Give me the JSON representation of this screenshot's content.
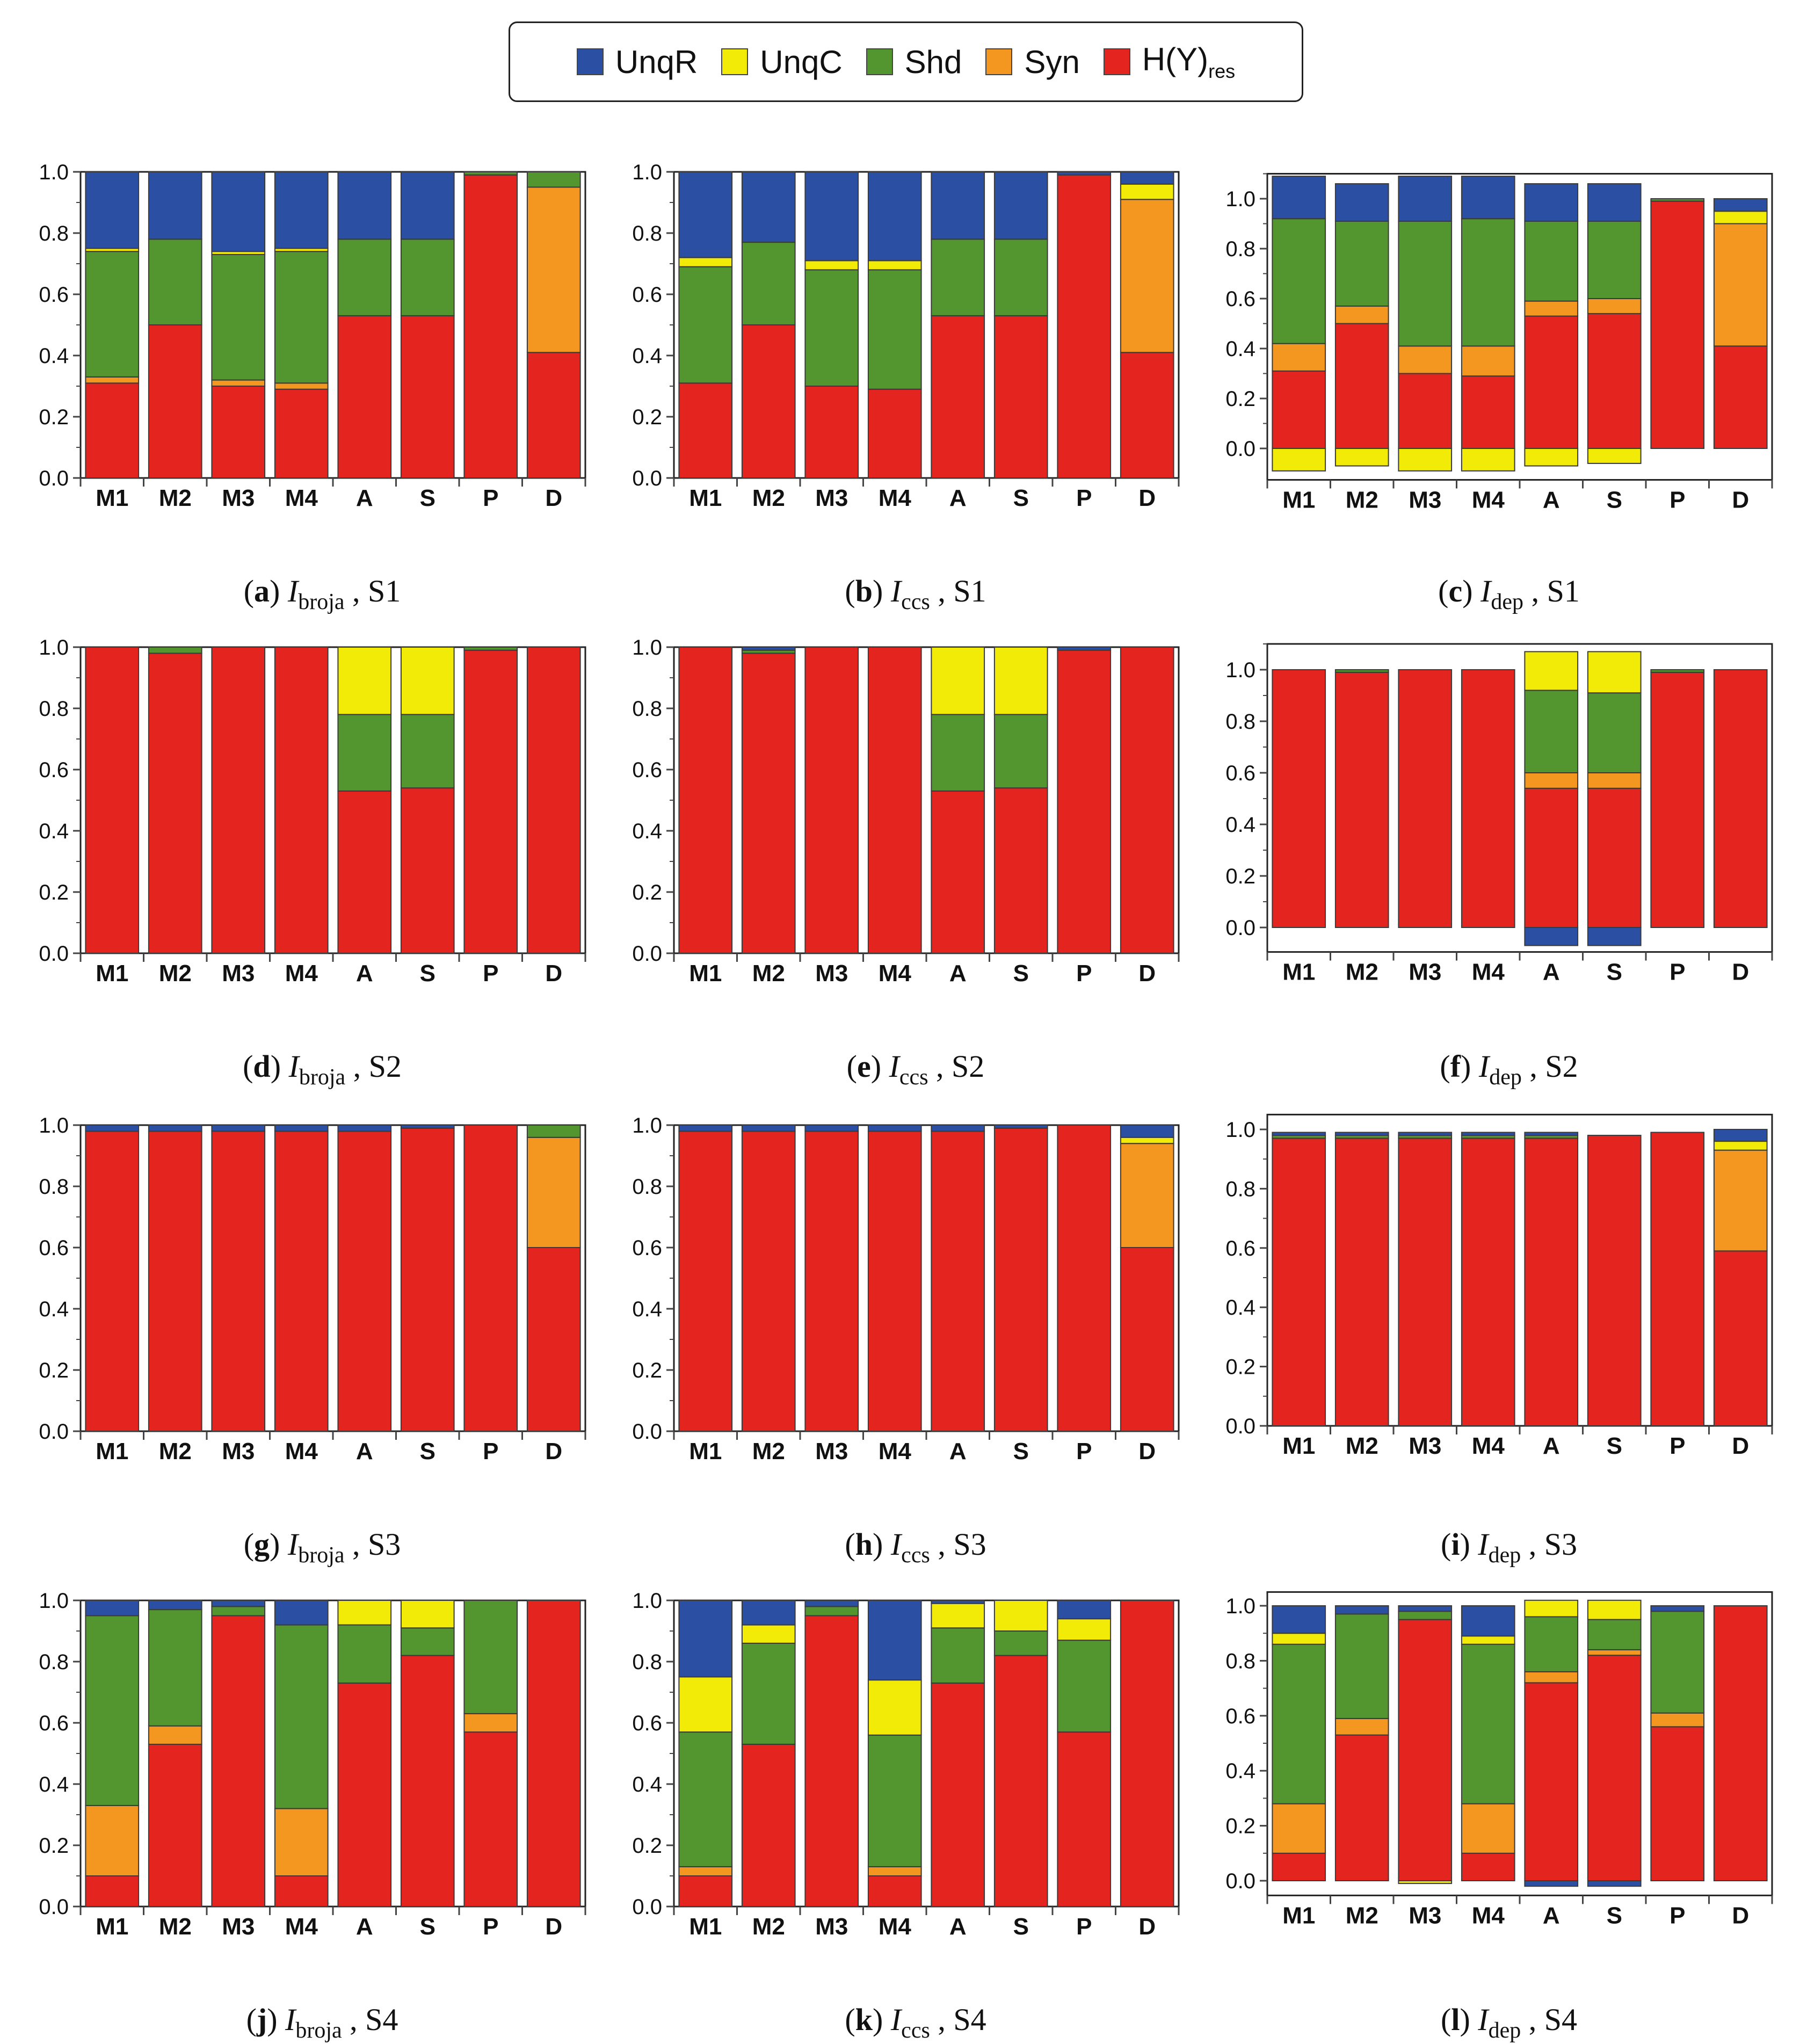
{
  "colors": {
    "UnqR": "#2a4fa3",
    "UnqC": "#f2ea07",
    "Shd": "#53962f",
    "Syn": "#f39720",
    "Hres": "#e3241f",
    "frame": "#222222",
    "tick": "#444444"
  },
  "legend": {
    "items": [
      {
        "key": "UnqR",
        "label": "UnqR",
        "sub": ""
      },
      {
        "key": "UnqC",
        "label": "UnqC",
        "sub": ""
      },
      {
        "key": "Shd",
        "label": "Shd",
        "sub": ""
      },
      {
        "key": "Syn",
        "label": "Syn",
        "sub": ""
      },
      {
        "key": "Hres",
        "label": "H(Y)",
        "sub": "res"
      }
    ]
  },
  "chart_data": [
    {
      "id": "a",
      "type": "bar",
      "stacked": true,
      "caption": {
        "letter": "a",
        "measure": "I",
        "sub": "broja",
        "scenario": "S1"
      },
      "categories": [
        "M1",
        "M2",
        "M3",
        "M4",
        "A",
        "S",
        "P",
        "D"
      ],
      "ylim": [
        0,
        1.0
      ],
      "yticks": [
        "0.0",
        "0.2",
        "0.4",
        "0.6",
        "0.8",
        "1.0"
      ],
      "series": [
        {
          "name": "Hres",
          "values": [
            0.31,
            0.5,
            0.3,
            0.29,
            0.53,
            0.53,
            0.99,
            0.41
          ]
        },
        {
          "name": "Syn",
          "values": [
            0.02,
            0,
            0.02,
            0.02,
            0,
            0,
            0,
            0.54
          ]
        },
        {
          "name": "Shd",
          "values": [
            0.41,
            0.28,
            0.41,
            0.43,
            0.25,
            0.25,
            0.01,
            0.05
          ]
        },
        {
          "name": "UnqC",
          "values": [
            0.01,
            0,
            0.01,
            0.01,
            0,
            0,
            0,
            0
          ]
        },
        {
          "name": "UnqR",
          "values": [
            0.25,
            0.22,
            0.26,
            0.25,
            0.22,
            0.22,
            0,
            0
          ]
        }
      ]
    },
    {
      "id": "b",
      "type": "bar",
      "stacked": true,
      "caption": {
        "letter": "b",
        "measure": "I",
        "sub": "ccs",
        "scenario": "S1"
      },
      "categories": [
        "M1",
        "M2",
        "M3",
        "M4",
        "A",
        "S",
        "P",
        "D"
      ],
      "ylim": [
        0,
        1.0
      ],
      "yticks": [
        "0.0",
        "0.2",
        "0.4",
        "0.6",
        "0.8",
        "1.0"
      ],
      "series": [
        {
          "name": "Hres",
          "values": [
            0.31,
            0.5,
            0.3,
            0.29,
            0.53,
            0.53,
            0.99,
            0.41
          ]
        },
        {
          "name": "Shd",
          "values": [
            0.38,
            0.27,
            0.38,
            0.39,
            0.25,
            0.25,
            0,
            0
          ]
        },
        {
          "name": "Syn",
          "values": [
            0,
            0,
            0,
            0,
            0,
            0,
            0,
            0.5
          ]
        },
        {
          "name": "UnqC",
          "values": [
            0.03,
            0,
            0.03,
            0.03,
            0,
            0,
            0,
            0.05
          ]
        },
        {
          "name": "UnqR",
          "values": [
            0.28,
            0.23,
            0.29,
            0.29,
            0.22,
            0.22,
            0.01,
            0.04
          ]
        }
      ]
    },
    {
      "id": "c",
      "type": "bar",
      "stacked": true,
      "caption": {
        "letter": "c",
        "measure": "I",
        "sub": "dep",
        "scenario": "S1"
      },
      "categories": [
        "M1",
        "M2",
        "M3",
        "M4",
        "A",
        "S",
        "P",
        "D"
      ],
      "ylim": [
        -0.1,
        1.1
      ],
      "yticks": [
        "0.0",
        "0.2",
        "0.4",
        "0.6",
        "0.8",
        "1.0"
      ],
      "series": [
        {
          "name": "UnqC",
          "values": [
            -0.09,
            -0.07,
            -0.09,
            -0.09,
            -0.07,
            -0.06,
            0,
            0
          ]
        },
        {
          "name": "Hres",
          "values": [
            0.31,
            0.5,
            0.3,
            0.29,
            0.53,
            0.54,
            0.99,
            0.41
          ]
        },
        {
          "name": "Syn",
          "values": [
            0.11,
            0.07,
            0.11,
            0.12,
            0.06,
            0.06,
            0,
            0.49
          ]
        },
        {
          "name": "Shd",
          "values": [
            0.5,
            0.34,
            0.5,
            0.51,
            0.32,
            0.31,
            0.01,
            0
          ]
        },
        {
          "name": "UnqC",
          "values": [
            0,
            0,
            0,
            0,
            0,
            0,
            0,
            0.05
          ]
        },
        {
          "name": "UnqR",
          "values": [
            0.17,
            0.15,
            0.18,
            0.17,
            0.15,
            0.15,
            0,
            0.05
          ]
        }
      ]
    },
    {
      "id": "d",
      "type": "bar",
      "stacked": true,
      "caption": {
        "letter": "d",
        "measure": "I",
        "sub": "broja",
        "scenario": "S2"
      },
      "categories": [
        "M1",
        "M2",
        "M3",
        "M4",
        "A",
        "S",
        "P",
        "D"
      ],
      "ylim": [
        0,
        1.0
      ],
      "yticks": [
        "0.0",
        "0.2",
        "0.4",
        "0.6",
        "0.8",
        "1.0"
      ],
      "series": [
        {
          "name": "Hres",
          "values": [
            1.0,
            0.98,
            1.0,
            1.0,
            0.53,
            0.54,
            0.99,
            1.0
          ]
        },
        {
          "name": "Shd",
          "values": [
            0,
            0.02,
            0,
            0,
            0.25,
            0.24,
            0.01,
            0
          ]
        },
        {
          "name": "UnqC",
          "values": [
            0,
            0,
            0,
            0,
            0.22,
            0.22,
            0,
            0
          ]
        }
      ]
    },
    {
      "id": "e",
      "type": "bar",
      "stacked": true,
      "caption": {
        "letter": "e",
        "measure": "I",
        "sub": "ccs",
        "scenario": "S2"
      },
      "categories": [
        "M1",
        "M2",
        "M3",
        "M4",
        "A",
        "S",
        "P",
        "D"
      ],
      "ylim": [
        0,
        1.0
      ],
      "yticks": [
        "0.0",
        "0.2",
        "0.4",
        "0.6",
        "0.8",
        "1.0"
      ],
      "series": [
        {
          "name": "Hres",
          "values": [
            1.0,
            0.98,
            1.0,
            1.0,
            0.53,
            0.54,
            0.99,
            1.0
          ]
        },
        {
          "name": "Shd",
          "values": [
            0,
            0.01,
            0,
            0,
            0.25,
            0.24,
            0,
            0
          ]
        },
        {
          "name": "UnqC",
          "values": [
            0,
            0,
            0,
            0,
            0.22,
            0.22,
            0,
            0
          ]
        },
        {
          "name": "UnqR",
          "values": [
            0,
            0.01,
            0,
            0,
            0,
            0,
            0.01,
            0
          ]
        }
      ]
    },
    {
      "id": "f",
      "type": "bar",
      "stacked": true,
      "caption": {
        "letter": "f",
        "measure": "I",
        "sub": "dep",
        "scenario": "S2"
      },
      "categories": [
        "M1",
        "M2",
        "M3",
        "M4",
        "A",
        "S",
        "P",
        "D"
      ],
      "ylim": [
        -0.07,
        1.1
      ],
      "yticks": [
        "0.0",
        "0.2",
        "0.4",
        "0.6",
        "0.8",
        "1.0"
      ],
      "series": [
        {
          "name": "UnqR",
          "values": [
            0,
            0,
            0,
            0,
            -0.07,
            -0.07,
            0,
            0
          ]
        },
        {
          "name": "Hres",
          "values": [
            1.0,
            0.99,
            1.0,
            1.0,
            0.54,
            0.54,
            0.99,
            1.0
          ]
        },
        {
          "name": "Syn",
          "values": [
            0,
            0,
            0,
            0,
            0.06,
            0.06,
            0,
            0
          ]
        },
        {
          "name": "Shd",
          "values": [
            0,
            0.01,
            0,
            0,
            0.32,
            0.31,
            0.01,
            0
          ]
        },
        {
          "name": "UnqC",
          "values": [
            0,
            0,
            0,
            0,
            0.15,
            0.16,
            0,
            0
          ]
        }
      ]
    },
    {
      "id": "g",
      "type": "bar",
      "stacked": true,
      "caption": {
        "letter": "g",
        "measure": "I",
        "sub": "broja",
        "scenario": "S3"
      },
      "categories": [
        "M1",
        "M2",
        "M3",
        "M4",
        "A",
        "S",
        "P",
        "D"
      ],
      "ylim": [
        0,
        1.0
      ],
      "yticks": [
        "0.0",
        "0.2",
        "0.4",
        "0.6",
        "0.8",
        "1.0"
      ],
      "series": [
        {
          "name": "Hres",
          "values": [
            0.98,
            0.98,
            0.98,
            0.98,
            0.98,
            0.99,
            1.0,
            0.6
          ]
        },
        {
          "name": "Syn",
          "values": [
            0,
            0,
            0,
            0,
            0,
            0,
            0,
            0.36
          ]
        },
        {
          "name": "Shd",
          "values": [
            0,
            0,
            0,
            0,
            0,
            0,
            0,
            0.04
          ]
        },
        {
          "name": "UnqR",
          "values": [
            0.02,
            0.02,
            0.02,
            0.02,
            0.02,
            0.01,
            0,
            0
          ]
        }
      ]
    },
    {
      "id": "h",
      "type": "bar",
      "stacked": true,
      "caption": {
        "letter": "h",
        "measure": "I",
        "sub": "ccs",
        "scenario": "S3"
      },
      "categories": [
        "M1",
        "M2",
        "M3",
        "M4",
        "A",
        "S",
        "P",
        "D"
      ],
      "ylim": [
        0,
        1.0
      ],
      "yticks": [
        "0.0",
        "0.2",
        "0.4",
        "0.6",
        "0.8",
        "1.0"
      ],
      "series": [
        {
          "name": "Hres",
          "values": [
            0.98,
            0.98,
            0.98,
            0.98,
            0.98,
            0.99,
            1.0,
            0.6
          ]
        },
        {
          "name": "Syn",
          "values": [
            0,
            0,
            0,
            0,
            0,
            0,
            0,
            0.34
          ]
        },
        {
          "name": "UnqC",
          "values": [
            0,
            0,
            0,
            0,
            0,
            0,
            0,
            0.02
          ]
        },
        {
          "name": "UnqR",
          "values": [
            0.02,
            0.02,
            0.02,
            0.02,
            0.02,
            0.01,
            0,
            0.04
          ]
        }
      ]
    },
    {
      "id": "i",
      "type": "bar",
      "stacked": true,
      "caption": {
        "letter": "i",
        "measure": "I",
        "sub": "dep",
        "scenario": "S3"
      },
      "categories": [
        "M1",
        "M2",
        "M3",
        "M4",
        "A",
        "S",
        "P",
        "D"
      ],
      "ylim": [
        0,
        1.05
      ],
      "yticks": [
        "0.0",
        "0.2",
        "0.4",
        "0.6",
        "0.8",
        "1.0"
      ],
      "series": [
        {
          "name": "Hres",
          "values": [
            0.97,
            0.97,
            0.97,
            0.97,
            0.97,
            0.98,
            0.99,
            0.59
          ]
        },
        {
          "name": "Syn",
          "values": [
            0,
            0,
            0,
            0,
            0,
            0,
            0,
            0.34
          ]
        },
        {
          "name": "Shd",
          "values": [
            0.01,
            0.01,
            0.01,
            0.01,
            0.01,
            0,
            0,
            0
          ]
        },
        {
          "name": "UnqC",
          "values": [
            0,
            0,
            0,
            0,
            0,
            0,
            0,
            0.03
          ]
        },
        {
          "name": "UnqR",
          "values": [
            0.01,
            0.01,
            0.01,
            0.01,
            0.01,
            0,
            0,
            0.04
          ]
        }
      ]
    },
    {
      "id": "j",
      "type": "bar",
      "stacked": true,
      "caption": {
        "letter": "j",
        "measure": "I",
        "sub": "broja",
        "scenario": "S4"
      },
      "categories": [
        "M1",
        "M2",
        "M3",
        "M4",
        "A",
        "S",
        "P",
        "D"
      ],
      "ylim": [
        0,
        1.0
      ],
      "yticks": [
        "0.0",
        "0.2",
        "0.4",
        "0.6",
        "0.8",
        "1.0"
      ],
      "series": [
        {
          "name": "Hres",
          "values": [
            0.1,
            0.53,
            0.95,
            0.1,
            0.73,
            0.82,
            0.57,
            1.0
          ]
        },
        {
          "name": "Syn",
          "values": [
            0.23,
            0.06,
            0,
            0.22,
            0,
            0,
            0.06,
            0
          ]
        },
        {
          "name": "Shd",
          "values": [
            0.62,
            0.38,
            0.03,
            0.6,
            0.19,
            0.09,
            0.37,
            0
          ]
        },
        {
          "name": "UnqC",
          "values": [
            0,
            0,
            0,
            0,
            0.08,
            0.09,
            0,
            0
          ]
        },
        {
          "name": "UnqR",
          "values": [
            0.05,
            0.03,
            0.02,
            0.08,
            0,
            0,
            0,
            0
          ]
        }
      ]
    },
    {
      "id": "k",
      "type": "bar",
      "stacked": true,
      "caption": {
        "letter": "k",
        "measure": "I",
        "sub": "ccs",
        "scenario": "S4"
      },
      "categories": [
        "M1",
        "M2",
        "M3",
        "M4",
        "A",
        "S",
        "P",
        "D"
      ],
      "ylim": [
        0,
        1.0
      ],
      "yticks": [
        "0.0",
        "0.2",
        "0.4",
        "0.6",
        "0.8",
        "1.0"
      ],
      "series": [
        {
          "name": "Hres",
          "values": [
            0.1,
            0.53,
            0.95,
            0.1,
            0.73,
            0.82,
            0.57,
            1.0
          ]
        },
        {
          "name": "Syn",
          "values": [
            0.03,
            0,
            0,
            0.03,
            0,
            0,
            0,
            0
          ]
        },
        {
          "name": "Shd",
          "values": [
            0.44,
            0.33,
            0.03,
            0.43,
            0.18,
            0.08,
            0.3,
            0
          ]
        },
        {
          "name": "UnqC",
          "values": [
            0.18,
            0.06,
            0,
            0.18,
            0.08,
            0.1,
            0.07,
            0
          ]
        },
        {
          "name": "UnqR",
          "values": [
            0.25,
            0.08,
            0.02,
            0.26,
            0.01,
            0,
            0.06,
            0
          ]
        }
      ]
    },
    {
      "id": "l",
      "type": "bar",
      "stacked": true,
      "caption": {
        "letter": "l",
        "measure": "I",
        "sub": "dep",
        "scenario": "S4"
      },
      "categories": [
        "M1",
        "M2",
        "M3",
        "M4",
        "A",
        "S",
        "P",
        "D"
      ],
      "ylim": [
        -0.03,
        1.05
      ],
      "yticks": [
        "0.0",
        "0.2",
        "0.4",
        "0.6",
        "0.8",
        "1.0"
      ],
      "series": [
        {
          "name": "UnqR",
          "values": [
            0,
            0,
            0,
            0,
            -0.02,
            -0.02,
            0,
            0
          ]
        },
        {
          "name": "UnqC",
          "values": [
            0,
            0,
            -0.01,
            0,
            0,
            0,
            0,
            0
          ]
        },
        {
          "name": "Hres",
          "values": [
            0.1,
            0.53,
            0.95,
            0.1,
            0.72,
            0.82,
            0.56,
            1.0
          ]
        },
        {
          "name": "Syn",
          "values": [
            0.18,
            0.06,
            0,
            0.18,
            0.04,
            0.02,
            0.05,
            0
          ]
        },
        {
          "name": "Shd",
          "values": [
            0.58,
            0.38,
            0.03,
            0.58,
            0.2,
            0.11,
            0.37,
            0
          ]
        },
        {
          "name": "UnqC",
          "values": [
            0.04,
            0,
            0,
            0.03,
            0.06,
            0.07,
            0,
            0
          ]
        },
        {
          "name": "UnqR",
          "values": [
            0.1,
            0.03,
            0.02,
            0.11,
            0,
            0,
            0.02,
            0
          ]
        }
      ]
    }
  ]
}
